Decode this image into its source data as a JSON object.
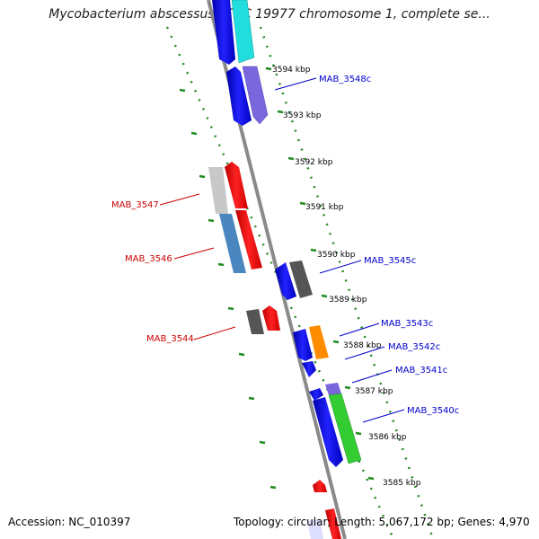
{
  "title": "Mycobacterium abscessus ATCC 19977 chromosome 1, complete se...",
  "accession_label": "Accession:",
  "accession": "NC_010397",
  "footer_info": "Topology: circular; Length: 5,067,172 bp; Genes: 4,970",
  "ticks": [
    "3594 kbp",
    "3593 kbp",
    "3592 kbp",
    "3591 kbp",
    "3590 kbp",
    "3589 kbp",
    "3588 kbp",
    "3587 kbp",
    "3586 kbp",
    "3585 kbp"
  ],
  "gene_labels": [
    {
      "name": "MAB_3548c",
      "color": "#0000cc",
      "strand": "minus"
    },
    {
      "name": "MAB_3547",
      "color": "#cc0000",
      "strand": "plus"
    },
    {
      "name": "MAB_3546",
      "color": "#cc0000",
      "strand": "plus"
    },
    {
      "name": "MAB_3545c",
      "color": "#0000cc",
      "strand": "minus"
    },
    {
      "name": "MAB_3544",
      "color": "#cc0000",
      "strand": "plus"
    },
    {
      "name": "MAB_3543c",
      "color": "#0000cc",
      "strand": "minus"
    },
    {
      "name": "MAB_3542c",
      "color": "#0000cc",
      "strand": "minus"
    },
    {
      "name": "MAB_3541c",
      "color": "#0000cc",
      "strand": "minus"
    },
    {
      "name": "MAB_3540c",
      "color": "#0000cc",
      "strand": "minus"
    }
  ],
  "colors": {
    "backbone": "#888888",
    "tick_marks": "#228b22",
    "minus_strand_gene": "#0000ee",
    "plus_strand_gene": "#ee0000"
  }
}
